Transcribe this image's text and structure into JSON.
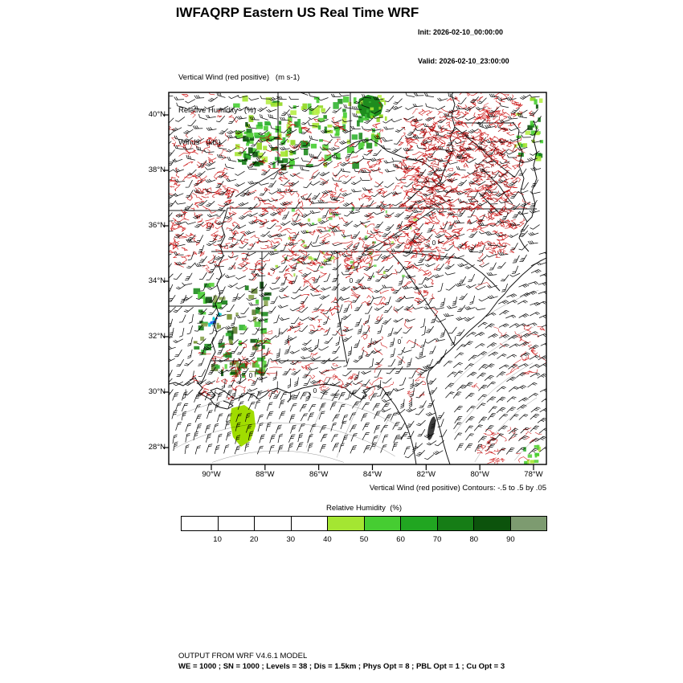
{
  "header": {
    "title": "IWFAQRP Eastern US Real Time WRF",
    "init_label": "Init: 2026-02-10_00:00:00",
    "valid_label": "Valid: 2026-02-10_23:00:00"
  },
  "legend": {
    "line1": "Vertical Wind (red positive)   (m s-1)",
    "line2": "Relative Humidity   (%)",
    "line3": "Winds   (kts)"
  },
  "map": {
    "lat_ticks": [
      "40°N",
      "38°N",
      "36°N",
      "34°N",
      "32°N",
      "30°N",
      "28°N"
    ],
    "lon_ticks": [
      "90°W",
      "88°W",
      "86°W",
      "84°W",
      "82°W",
      "80°W",
      "78°W"
    ],
    "caption": "Vertical Wind (red positive) Contours: -.5 to .5 by .05",
    "contour_labels": [
      "0",
      "0",
      "0",
      "0",
      "0"
    ]
  },
  "colorbar": {
    "title": "Relative Humidity  (%)",
    "tick_labels": [
      "10",
      "20",
      "30",
      "40",
      "50",
      "60",
      "70",
      "80",
      "90"
    ],
    "cell_colors": [
      "#ffffff",
      "#ffffff",
      "#ffffff",
      "#ffffff",
      "#a4e632",
      "#46cd32",
      "#21a621",
      "#167d16",
      "#0c530c",
      "#7d9b70"
    ]
  },
  "footer": {
    "line1": "OUTPUT FROM WRF V4.6.1 MODEL",
    "line2": "WE = 1000 ; SN = 1000 ; Levels = 38 ; Dis = 1.5km ; Phys Opt = 8 ; PBL Opt = 1 ; Cu Opt = 3"
  },
  "chart_data": {
    "type": "map",
    "title": "IWFAQRP Eastern US Real Time WRF",
    "region": "Eastern US, approx 91.5W-77.5W / 27.4N-40.8N",
    "lat_ticks": [
      "40°N",
      "38°N",
      "36°N",
      "34°N",
      "32°N",
      "30°N",
      "28°N"
    ],
    "lon_ticks": [
      "90°W",
      "88°W",
      "86°W",
      "84°W",
      "82°W",
      "80°W",
      "78°W"
    ],
    "layers": [
      {
        "name": "vertical_wind_contours",
        "color": "#c80000",
        "units": "m s-1",
        "contours": "-.5 to .5 by .05",
        "note": "red positive; dense band from Arkansas across Tennessee into Virginia/Appalachians"
      },
      {
        "name": "relative_humidity_shading",
        "units": "%",
        "levels": [
          10,
          20,
          30,
          40,
          50,
          60,
          70,
          80,
          90
        ],
        "palette": [
          "#ffffff",
          "#ffffff",
          "#ffffff",
          "#ffffff",
          "#a4e632",
          "#46cd32",
          "#21a621",
          "#167d16",
          "#0c530c",
          "#7d9b70"
        ],
        "note": "green patches over Ohio valley, Mississippi, and a bright cell over the Gulf near 88W 28.5N"
      },
      {
        "name": "wind_barbs",
        "color": "#000000",
        "units": "kts",
        "note": "smooth anticyclonic flow over SE Atlantic and Gulf; disturbed SW flow over land"
      }
    ]
  }
}
